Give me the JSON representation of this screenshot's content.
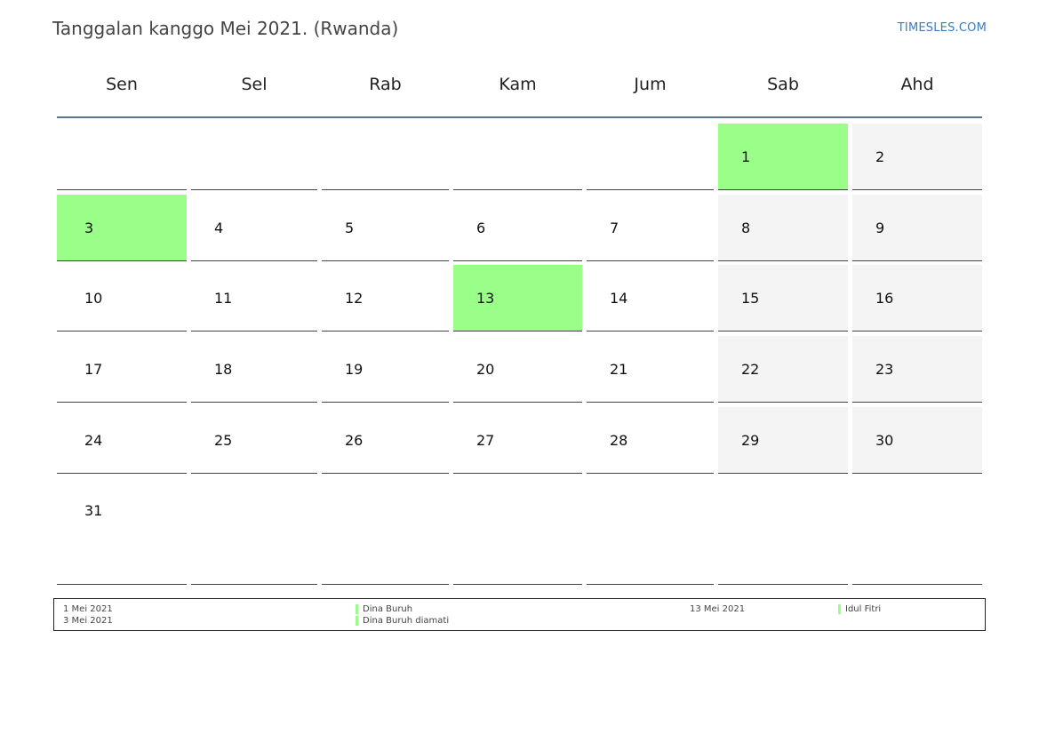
{
  "header": {
    "title": "Tanggalan kanggo Mei 2021. (Rwanda)",
    "brand": "TIMESLES.COM"
  },
  "weekdays": [
    "Sen",
    "Sel",
    "Rab",
    "Kam",
    "Jum",
    "Sab",
    "Ahd"
  ],
  "colors": {
    "holiday": "#99ff88",
    "weekend": "#f4f4f4",
    "header_rule": "#5b7597",
    "brand": "#3a7bbf"
  },
  "weeks": [
    [
      null,
      null,
      null,
      null,
      null,
      {
        "day": "1",
        "holiday": true
      },
      {
        "day": "2"
      }
    ],
    [
      {
        "day": "3",
        "holiday": true
      },
      {
        "day": "4"
      },
      {
        "day": "5"
      },
      {
        "day": "6"
      },
      {
        "day": "7"
      },
      {
        "day": "8"
      },
      {
        "day": "9"
      }
    ],
    [
      {
        "day": "10"
      },
      {
        "day": "11"
      },
      {
        "day": "12"
      },
      {
        "day": "13",
        "holiday": true
      },
      {
        "day": "14"
      },
      {
        "day": "15"
      },
      {
        "day": "16"
      }
    ],
    [
      {
        "day": "17"
      },
      {
        "day": "18"
      },
      {
        "day": "19"
      },
      {
        "day": "20"
      },
      {
        "day": "21"
      },
      {
        "day": "22"
      },
      {
        "day": "23"
      }
    ],
    [
      {
        "day": "24"
      },
      {
        "day": "25"
      },
      {
        "day": "26"
      },
      {
        "day": "27"
      },
      {
        "day": "28"
      },
      {
        "day": "29"
      },
      {
        "day": "30"
      }
    ],
    [
      {
        "day": "31"
      },
      null,
      null,
      null,
      null,
      null,
      null
    ]
  ],
  "legend": [
    {
      "date": "1 Mei 2021",
      "name": "Dina Buruh"
    },
    {
      "date": "3 Mei 2021",
      "name": "Dina Buruh diamati"
    },
    {
      "date": "13 Mei 2021",
      "name": "Idul Fitri"
    }
  ]
}
